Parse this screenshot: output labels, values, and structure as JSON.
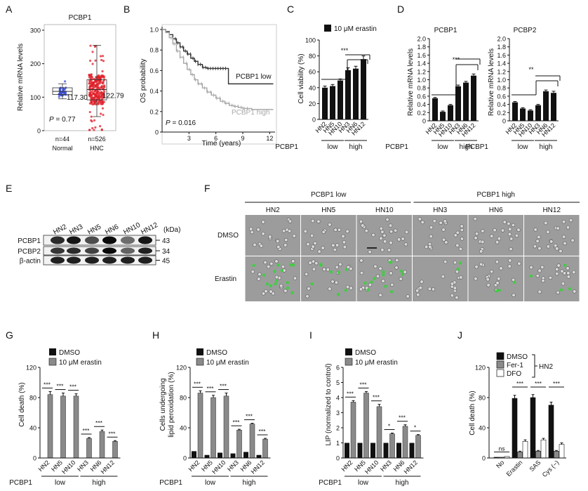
{
  "colors": {
    "blue": "#3b4fd6",
    "red": "#e0202a",
    "black": "#111111",
    "gray": "#8a8a8a",
    "lightgray": "#a8a8a8",
    "green": "#39d23c",
    "micro": "#9c9c9c"
  },
  "panelA": {
    "label": "A",
    "title": "PCBP1",
    "ylabel": "Relative mRNA levels",
    "groups": [
      {
        "name": "Normal",
        "n": "n=44",
        "median": 117.3,
        "median_label": "117.30",
        "q1": 108,
        "q3": 128,
        "wlo": 95,
        "whi": 140,
        "color": "blue"
      },
      {
        "name": "HNC",
        "n": "n=526",
        "median": 122.79,
        "median_label": "122.79",
        "q1": 92,
        "q3": 152,
        "wlo": 42,
        "whi": 255,
        "color": "red"
      }
    ],
    "pvalue": "P = 0.77",
    "ylim": [
      0,
      300
    ],
    "yticks": [
      "0",
      "100",
      "200",
      "300"
    ]
  },
  "panelB": {
    "label": "B",
    "ylabel": "OS probability",
    "xlabel": "Time (years)",
    "xticks": [
      "3",
      "6",
      "9",
      "12"
    ],
    "yticks": [
      "0",
      "0.2",
      "0.4",
      "0.6",
      "0.8",
      "1.0"
    ],
    "series": [
      {
        "name": "PCBP1 low",
        "color": "dark",
        "points": [
          [
            0,
            1
          ],
          [
            0.4,
            0.98
          ],
          [
            0.8,
            0.95
          ],
          [
            1.2,
            0.91
          ],
          [
            1.6,
            0.87
          ],
          [
            2,
            0.83
          ],
          [
            2.4,
            0.79
          ],
          [
            2.8,
            0.76
          ],
          [
            3.2,
            0.72
          ],
          [
            3.6,
            0.69
          ],
          [
            4,
            0.66
          ],
          [
            4.5,
            0.63
          ],
          [
            5,
            0.62
          ],
          [
            6,
            0.62
          ],
          [
            7.2,
            0.62
          ],
          [
            7.4,
            0.47
          ],
          [
            12.4,
            0.47
          ]
        ]
      },
      {
        "name": "PCBP1 high",
        "color": "light",
        "points": [
          [
            0,
            1
          ],
          [
            0.4,
            0.97
          ],
          [
            0.8,
            0.92
          ],
          [
            1.2,
            0.86
          ],
          [
            1.6,
            0.79
          ],
          [
            2,
            0.73
          ],
          [
            2.4,
            0.67
          ],
          [
            2.8,
            0.61
          ],
          [
            3.2,
            0.56
          ],
          [
            3.6,
            0.51
          ],
          [
            4,
            0.47
          ],
          [
            4.5,
            0.43
          ],
          [
            5,
            0.39
          ],
          [
            5.5,
            0.36
          ],
          [
            6,
            0.33
          ],
          [
            6.5,
            0.3
          ],
          [
            7,
            0.28
          ],
          [
            7.5,
            0.26
          ],
          [
            8,
            0.25
          ],
          [
            8.5,
            0.24
          ],
          [
            9,
            0.23
          ],
          [
            10,
            0.22
          ],
          [
            12.4,
            0.22
          ]
        ]
      }
    ],
    "pvalue": "P = 0.016"
  },
  "panelC": {
    "label": "C",
    "legend": "10 μM erastin",
    "ylabel": "Cell viability (%)",
    "yticks": [
      "0",
      "20",
      "40",
      "60",
      "80",
      "100"
    ],
    "ylim": [
      0,
      100
    ],
    "categories": [
      "HN2",
      "HN5",
      "HN10",
      "HN3",
      "HN6",
      "HN12"
    ],
    "values": [
      40,
      42,
      49,
      62,
      64,
      76
    ],
    "errors": [
      2,
      2,
      2,
      3,
      3,
      4
    ],
    "sig": "***",
    "group_label": "PCBP1",
    "groups": [
      "low",
      "high"
    ]
  },
  "panelD": {
    "label": "D",
    "charts": [
      {
        "title": "PCBP1",
        "ylabel": "Relative mRNA levels",
        "categories": [
          "HN2",
          "HN5",
          "HN10",
          "HN3",
          "HN6",
          "HN12"
        ],
        "values": [
          0.55,
          0.22,
          0.38,
          0.84,
          0.93,
          1.1
        ],
        "errors": [
          0.02,
          0.02,
          0.02,
          0.03,
          0.03,
          0.04
        ],
        "sig": "***",
        "yticks": [
          "0",
          "0.2",
          "0.4",
          "0.6",
          "0.8",
          "1.0",
          "1.2",
          "1.4",
          "1.6",
          "1.8",
          "2.0"
        ],
        "ylim": [
          0,
          2
        ]
      },
      {
        "title": "PCBP2",
        "ylabel": "Relative mRNA levels",
        "categories": [
          "HN2",
          "HN5",
          "HN10",
          "HN3",
          "HN6",
          "HN12"
        ],
        "values": [
          0.45,
          0.3,
          0.25,
          0.38,
          0.72,
          0.68
        ],
        "errors": [
          0.02,
          0.02,
          0.02,
          0.02,
          0.03,
          0.04
        ],
        "sig": "**",
        "yticks": [
          "0",
          "0.2",
          "0.4",
          "0.6",
          "0.8",
          "1.0",
          "1.2",
          "1.4",
          "1.6",
          "1.8",
          "2.0"
        ],
        "ylim": [
          0,
          2
        ]
      }
    ],
    "group_label": "PCBP1",
    "groups": [
      "low",
      "high"
    ]
  },
  "panelE": {
    "label": "E",
    "lanes": [
      "HN2",
      "HN3",
      "HN5",
      "HN6",
      "HN10",
      "HN12"
    ],
    "kda": "(kDa)",
    "rows": [
      {
        "name": "PCBP1",
        "mw": "43",
        "intensity": [
          0.85,
          0.95,
          0.7,
          1.0,
          0.55,
          0.95
        ]
      },
      {
        "name": "PCBP2",
        "mw": "34",
        "intensity": [
          0.8,
          0.85,
          0.75,
          1.0,
          0.6,
          0.9
        ]
      },
      {
        "name": "β-actin",
        "mw": "45",
        "intensity": [
          0.9,
          0.9,
          0.9,
          0.9,
          0.9,
          0.9
        ]
      }
    ]
  },
  "panelF": {
    "label": "F",
    "group_low": "PCBP1 low",
    "group_high": "PCBP1 high",
    "columns": [
      "HN2",
      "HN5",
      "HN10",
      "HN3",
      "HN6",
      "HN12"
    ],
    "rows": [
      "DMSO",
      "Erastin"
    ],
    "green_spots": [
      14,
      8,
      12,
      2,
      3,
      4
    ]
  },
  "panelG": {
    "label": "G",
    "ylabel": "Cell death (%)",
    "legend": [
      "DMSO",
      "10 μM erastin"
    ],
    "categories": [
      "HN2",
      "HN5",
      "HN10",
      "HN3",
      "HN6",
      "HN12"
    ],
    "dmso": [
      0,
      0,
      0,
      0,
      0,
      0
    ],
    "erastin": [
      84,
      82,
      82,
      26,
      35,
      22
    ],
    "errors": [
      4,
      4,
      3,
      1,
      2,
      1
    ],
    "sig": [
      "***",
      "***",
      "***",
      "***",
      "***",
      "***"
    ],
    "yticks": [
      "0",
      "40",
      "80",
      "120"
    ],
    "ylim": [
      0,
      120
    ],
    "group_label": "PCBP1",
    "groups": [
      "low",
      "high"
    ]
  },
  "panelH": {
    "label": "H",
    "ylabel": "Cells undergoing lipid peroxidation (%)",
    "ylabel1": "Cells undergoing",
    "ylabel2": "lipid peroxidation (%)",
    "legend": [
      "DMSO",
      "10 μM erastin"
    ],
    "categories": [
      "HN2",
      "HN5",
      "HN10",
      "HN3",
      "HN6",
      "HN12"
    ],
    "dmso": [
      9,
      4,
      7,
      6,
      8,
      4
    ],
    "erastin": [
      86,
      80,
      82,
      37,
      45,
      25
    ],
    "errors": [
      3,
      3,
      4,
      1,
      1,
      1
    ],
    "sig": [
      "***",
      "***",
      "***",
      "***",
      "***",
      "***"
    ],
    "yticks": [
      "0",
      "40",
      "80",
      "120"
    ],
    "ylim": [
      0,
      120
    ],
    "group_label": "PCBP1",
    "groups": [
      "low",
      "high"
    ]
  },
  "panelI": {
    "label": "I",
    "ylabel": "LIP (normalized to control)",
    "legend": [
      "DMSO",
      "10 μM erastin"
    ],
    "categories": [
      "HN2",
      "HN5",
      "HN10",
      "HN3",
      "HN6",
      "HN12"
    ],
    "dmso": [
      1,
      1,
      1,
      1,
      1,
      1
    ],
    "erastin": [
      3.7,
      4.3,
      3.4,
      1.6,
      2.1,
      1.5
    ],
    "errors": [
      0.1,
      0.1,
      0.15,
      0.05,
      0.1,
      0.05
    ],
    "sig": [
      "***",
      "***",
      "***",
      "*",
      "***",
      "*"
    ],
    "yticks": [
      "0",
      "1",
      "2",
      "3",
      "4",
      "5",
      "6"
    ],
    "ylim": [
      0,
      6
    ],
    "group_label": "PCBP1",
    "groups": [
      "low",
      "high"
    ]
  },
  "panelJ": {
    "label": "J",
    "ylabel": "Cell death (%)",
    "legend": [
      "DMSO",
      "Fer-1",
      "DFO"
    ],
    "legend_group": "HN2",
    "categories": [
      "No",
      "Erastin",
      "SAS",
      "Cys (−)"
    ],
    "series": [
      {
        "name": "DMSO",
        "values": [
          1,
          79,
          80,
          70
        ],
        "errors": [
          0.5,
          4,
          4,
          4
        ]
      },
      {
        "name": "Fer-1",
        "values": [
          1,
          8,
          9,
          9
        ],
        "errors": [
          0.5,
          1,
          1,
          1
        ]
      },
      {
        "name": "DFO",
        "values": [
          2,
          22,
          24,
          18
        ],
        "errors": [
          0.5,
          2,
          2,
          2
        ]
      }
    ],
    "sig": [
      "ns",
      "***",
      "***",
      "***"
    ],
    "yticks": [
      "0",
      "40",
      "80",
      "120"
    ],
    "ylim": [
      0,
      120
    ]
  }
}
